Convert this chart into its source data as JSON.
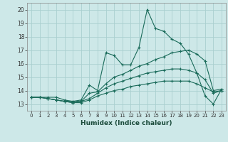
{
  "title": "",
  "xlabel": "Humidex (Indice chaleur)",
  "ylabel": "",
  "xlim": [
    -0.5,
    23.5
  ],
  "ylim": [
    12.5,
    20.5
  ],
  "xticks": [
    0,
    1,
    2,
    3,
    4,
    5,
    6,
    7,
    8,
    9,
    10,
    11,
    12,
    13,
    14,
    15,
    16,
    17,
    18,
    19,
    20,
    21,
    22,
    23
  ],
  "yticks": [
    13,
    14,
    15,
    16,
    17,
    18,
    19,
    20
  ],
  "bg_color": "#cde8e8",
  "grid_color": "#aacfcf",
  "line_color": "#1a6b5a",
  "lines": [
    {
      "x": [
        0,
        1,
        2,
        3,
        4,
        5,
        6,
        7,
        8,
        9,
        10,
        11,
        12,
        13,
        14,
        15,
        16,
        17,
        18,
        19,
        20,
        21,
        22,
        23
      ],
      "y": [
        13.5,
        13.5,
        13.5,
        13.5,
        13.3,
        13.2,
        13.3,
        14.4,
        14.0,
        16.8,
        16.6,
        15.9,
        15.9,
        17.2,
        20.0,
        18.6,
        18.4,
        17.8,
        17.5,
        16.7,
        15.3,
        13.6,
        13.0,
        14.1
      ]
    },
    {
      "x": [
        0,
        1,
        2,
        3,
        4,
        5,
        6,
        7,
        8,
        9,
        10,
        11,
        12,
        13,
        14,
        15,
        16,
        17,
        18,
        19,
        20,
        21,
        22,
        23
      ],
      "y": [
        13.5,
        13.5,
        13.4,
        13.3,
        13.2,
        13.2,
        13.2,
        13.8,
        13.9,
        14.5,
        15.0,
        15.2,
        15.5,
        15.8,
        16.0,
        16.3,
        16.5,
        16.8,
        16.9,
        17.0,
        16.7,
        16.2,
        14.0,
        14.1
      ]
    },
    {
      "x": [
        0,
        1,
        2,
        3,
        4,
        5,
        6,
        7,
        8,
        9,
        10,
        11,
        12,
        13,
        14,
        15,
        16,
        17,
        18,
        19,
        20,
        21,
        22,
        23
      ],
      "y": [
        13.5,
        13.5,
        13.4,
        13.3,
        13.2,
        13.1,
        13.2,
        13.4,
        13.8,
        14.2,
        14.5,
        14.7,
        14.9,
        15.1,
        15.3,
        15.4,
        15.5,
        15.6,
        15.6,
        15.5,
        15.3,
        14.8,
        13.8,
        14.0
      ]
    },
    {
      "x": [
        0,
        1,
        2,
        3,
        4,
        5,
        6,
        7,
        8,
        9,
        10,
        11,
        12,
        13,
        14,
        15,
        16,
        17,
        18,
        19,
        20,
        21,
        22,
        23
      ],
      "y": [
        13.5,
        13.5,
        13.4,
        13.3,
        13.2,
        13.1,
        13.1,
        13.3,
        13.6,
        13.8,
        14.0,
        14.1,
        14.3,
        14.4,
        14.5,
        14.6,
        14.7,
        14.7,
        14.7,
        14.7,
        14.5,
        14.2,
        13.9,
        14.0
      ]
    }
  ]
}
